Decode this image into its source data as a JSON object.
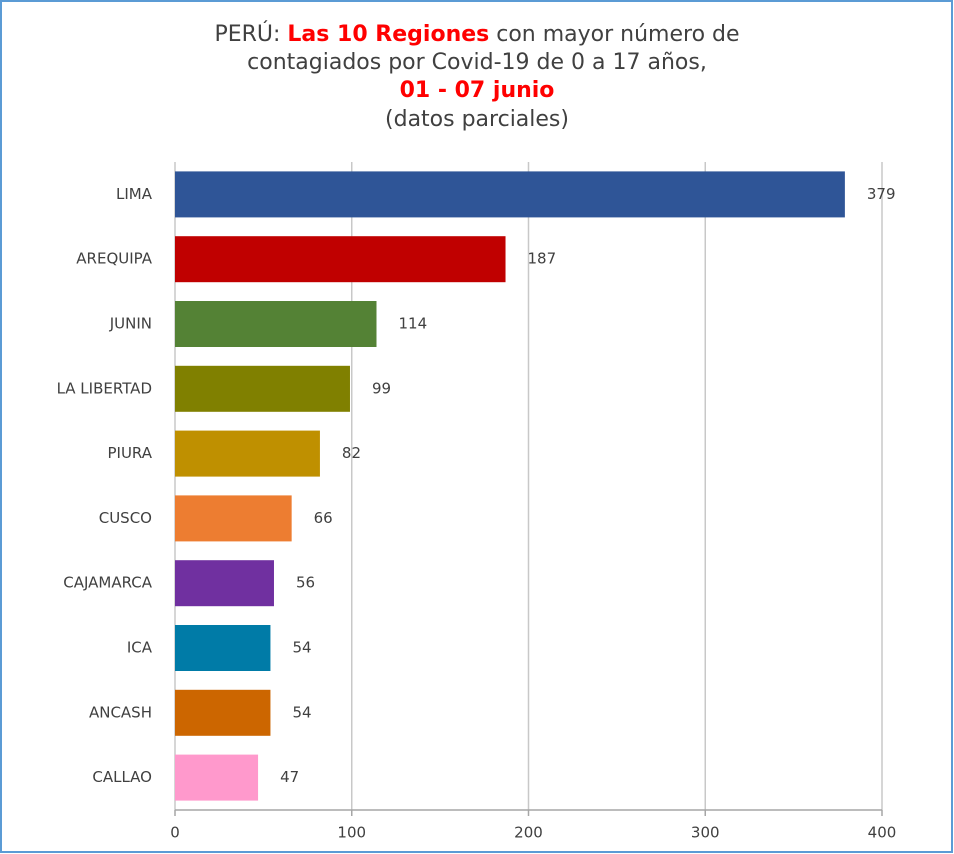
{
  "chart_data": {
    "type": "hbar",
    "title": {
      "prefix": "PERÚ:",
      "highlight": "Las 10 Regiones",
      "rest": "con mayor número de",
      "line2": "contagiados por Covid-19 de 0 a 17 años,",
      "date": "01 - 07 junio"
    },
    "subtitle": "(datos parciales)",
    "categories": [
      "LIMA",
      "AREQUIPA",
      "JUNIN",
      "LA LIBERTAD",
      "PIURA",
      "CUSCO",
      "CAJAMARCA",
      "ICA",
      "ANCASH",
      "CALLAO"
    ],
    "values": [
      379,
      187,
      114,
      99,
      82,
      66,
      56,
      54,
      54,
      47
    ],
    "colors": [
      "#2f5597",
      "#c00000",
      "#548235",
      "#808000",
      "#bf9000",
      "#ed7d31",
      "#7030a0",
      "#007ba7",
      "#cc6600",
      "#ff99cc"
    ],
    "xlim": [
      0,
      400
    ],
    "xticks": [
      0,
      100,
      200,
      300,
      400
    ],
    "grid": true
  }
}
